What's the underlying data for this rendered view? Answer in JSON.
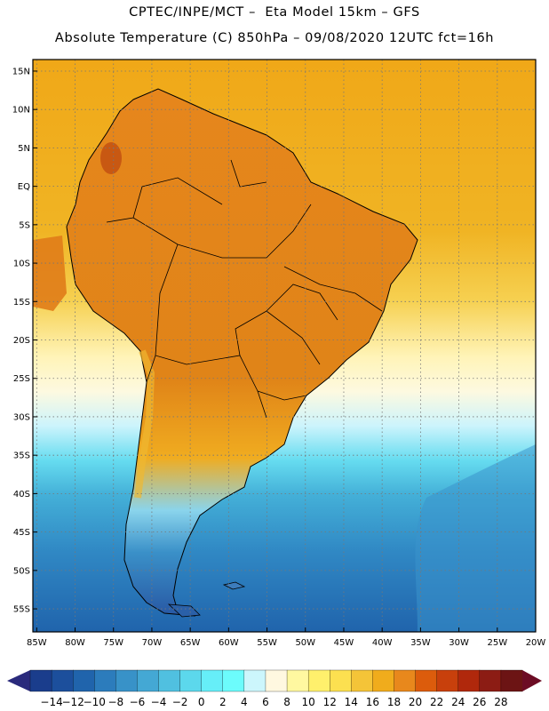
{
  "header": {
    "title_line1": "CPTEC/INPE/MCT –  Eta Model 15km – GFS",
    "title_line2": "Absolute Temperature (C) 850hPa – 09/08/2020 12UTC fct=16h"
  },
  "map": {
    "lat_labels": [
      "15N",
      "10N",
      "5N",
      "EQ",
      "5S",
      "10S",
      "15S",
      "20S",
      "25S",
      "30S",
      "35S",
      "40S",
      "45S",
      "50S",
      "55S"
    ],
    "lon_labels": [
      "85W",
      "80W",
      "75W",
      "70W",
      "65W",
      "60W",
      "55W",
      "50W",
      "45W",
      "40W",
      "35W",
      "30W",
      "25W",
      "20W"
    ],
    "lat_range": [
      -58,
      16.5
    ],
    "lon_range": [
      -85.5,
      -20
    ],
    "gridlines": "dotted",
    "colors": {
      "ocean_south": "#3c8cc8",
      "ocean_north": "#f0b020",
      "continent": "#e08c1c",
      "coast": "#000000"
    }
  },
  "colorbar": {
    "labels": [
      "-14",
      "-12",
      "-10",
      "-8",
      "-6",
      "-4",
      "-2",
      "0",
      "2",
      "4",
      "6",
      "8",
      "10",
      "12",
      "14",
      "16",
      "18",
      "20",
      "22",
      "24",
      "26",
      "28"
    ],
    "colors": [
      "#1a3d8c",
      "#1c4f9c",
      "#2064ac",
      "#2c7cbc",
      "#3892c8",
      "#44a8d4",
      "#50c0e0",
      "#5cd8ec",
      "#66eef8",
      "#6cfcfc",
      "#ccf6fc",
      "#fff8e0",
      "#fff8a0",
      "#fff06c",
      "#fce050",
      "#f4c438",
      "#f0ac1c",
      "#e8881c",
      "#dc5c0c",
      "#c8400c",
      "#b0280c",
      "#8c1c14",
      "#6c1414"
    ],
    "arrow_left": "#2a2a7c",
    "arrow_right": "#6c0c24"
  }
}
